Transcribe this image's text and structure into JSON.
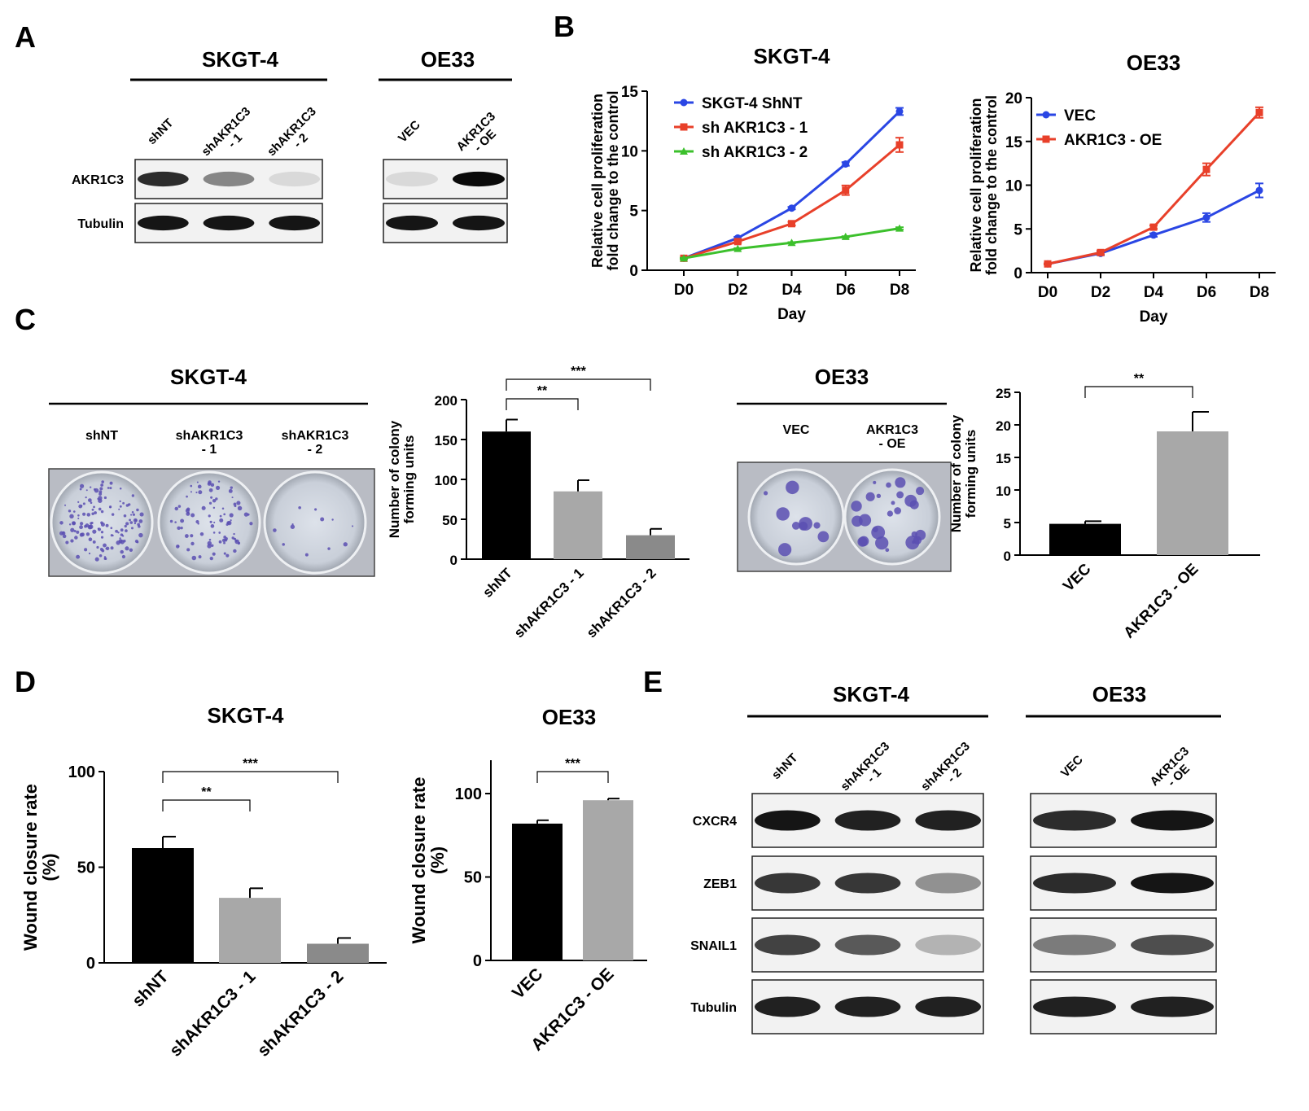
{
  "panels": {
    "A": {
      "letter": "A",
      "cells": [
        {
          "name": "SKGT-4",
          "lanes": [
            "shNT",
            "shAKR1C3\n- 1",
            "shAKR1C3\n- 2"
          ]
        },
        {
          "name": "OE33",
          "lanes": [
            "VEC",
            "AKR1C3\n- OE"
          ]
        }
      ],
      "proteins": [
        "AKR1C3",
        "Tubulin"
      ],
      "band_intensity": {
        "AKR1C3": [
          [
            0.85,
            0.45,
            0.08
          ],
          [
            0.08,
            1.0
          ]
        ],
        "Tubulin": [
          [
            0.95,
            0.95,
            0.95
          ],
          [
            0.95,
            0.95
          ]
        ]
      }
    },
    "B": {
      "letter": "B"
    },
    "C": {
      "letter": "C",
      "skgt": {
        "title": "SKGT-4",
        "labels": [
          "shNT",
          "shAKR1C3\n- 1",
          "shAKR1C3\n- 2"
        ]
      },
      "oe33": {
        "title": "OE33",
        "labels": [
          "VEC",
          "AKR1C3\n- OE"
        ]
      }
    },
    "D": {
      "letter": "D"
    },
    "E": {
      "letter": "E",
      "cells": [
        {
          "name": "SKGT-4",
          "lanes": [
            "shNT",
            "shAKR1C3\n- 1",
            "shAKR1C3\n- 2"
          ]
        },
        {
          "name": "OE33",
          "lanes": [
            "VEC",
            "AKR1C3\n- OE"
          ]
        }
      ],
      "proteins": [
        "CXCR4",
        "ZEB1",
        "SNAIL1",
        "Tubulin"
      ],
      "band_intensity": {
        "CXCR4": [
          [
            0.95,
            0.9,
            0.9
          ],
          [
            0.85,
            0.95
          ]
        ],
        "ZEB1": [
          [
            0.8,
            0.8,
            0.4
          ],
          [
            0.85,
            0.95
          ]
        ],
        "SNAIL1": [
          [
            0.75,
            0.65,
            0.25
          ],
          [
            0.5,
            0.7
          ]
        ],
        "Tubulin": [
          [
            0.9,
            0.9,
            0.9
          ],
          [
            0.9,
            0.9
          ]
        ]
      }
    }
  },
  "colors": {
    "blue": "#2a46e4",
    "red": "#e8402a",
    "green": "#3cc02c",
    "black": "#000000",
    "light_gray": "#a8a8a8",
    "mid_gray": "#8a8a8a"
  },
  "chart_data": [
    {
      "id": "B-SKGT-4",
      "type": "line",
      "title": "SKGT-4",
      "xlabel": "Day",
      "ylabel": "Relative cell proliferation\nfold change to the control",
      "categories": [
        "D0",
        "D2",
        "D4",
        "D6",
        "D8"
      ],
      "ylim": [
        0,
        15
      ],
      "yticks": [
        0,
        5,
        10,
        15
      ],
      "legend": "top-left",
      "series": [
        {
          "name": "SKGT-4 ShNT",
          "color": "#2a46e4",
          "marker": "circle",
          "values": [
            1,
            2.7,
            5.2,
            8.9,
            13.3
          ],
          "errors": [
            0.05,
            0.1,
            0.1,
            0.15,
            0.3
          ]
        },
        {
          "name": "sh AKR1C3 - 1",
          "color": "#e8402a",
          "marker": "square",
          "values": [
            1,
            2.4,
            3.9,
            6.7,
            10.5
          ],
          "errors": [
            0.05,
            0.1,
            0.15,
            0.4,
            0.6
          ]
        },
        {
          "name": "sh AKR1C3 - 2",
          "color": "#3cc02c",
          "marker": "triangle",
          "values": [
            1,
            1.8,
            2.3,
            2.8,
            3.5
          ],
          "errors": [
            0.05,
            0.05,
            0.05,
            0.05,
            0.1
          ]
        }
      ]
    },
    {
      "id": "B-OE33",
      "type": "line",
      "title": "OE33",
      "xlabel": "Day",
      "ylabel": "Relative cell proliferation\nfold change to the control",
      "categories": [
        "D0",
        "D2",
        "D4",
        "D6",
        "D8"
      ],
      "ylim": [
        0,
        20
      ],
      "yticks": [
        0,
        5,
        10,
        15,
        20
      ],
      "legend": "top-left",
      "series": [
        {
          "name": "VEC",
          "color": "#2a46e4",
          "marker": "circle",
          "values": [
            1,
            2.2,
            4.3,
            6.3,
            9.4
          ],
          "errors": [
            0.05,
            0.2,
            0.2,
            0.5,
            0.8
          ]
        },
        {
          "name": "AKR1C3 - OE",
          "color": "#e8402a",
          "marker": "square",
          "values": [
            1,
            2.3,
            5.2,
            11.8,
            18.3
          ],
          "errors": [
            0.05,
            0.2,
            0.2,
            0.7,
            0.6
          ]
        }
      ]
    },
    {
      "id": "C-SKGT-4",
      "type": "bar",
      "ylabel": "Number of colony\nforming units",
      "categories": [
        "shNT",
        "shAKR1C3 - 1",
        "shAKR1C3 - 2"
      ],
      "values": [
        160,
        85,
        30
      ],
      "errors": [
        15,
        14,
        8
      ],
      "colors": [
        "#000000",
        "#a8a8a8",
        "#8a8a8a"
      ],
      "ylim": [
        0,
        200
      ],
      "yticks": [
        0,
        50,
        100,
        150,
        200
      ],
      "significance": [
        {
          "from": 0,
          "to": 1,
          "label": "**"
        },
        {
          "from": 0,
          "to": 2,
          "label": "***"
        }
      ]
    },
    {
      "id": "C-OE33",
      "type": "bar",
      "ylabel": "Number of colony\nforming units",
      "categories": [
        "VEC",
        "AKR1C3 - OE"
      ],
      "values": [
        4.8,
        19
      ],
      "errors": [
        0.4,
        3
      ],
      "colors": [
        "#000000",
        "#a8a8a8"
      ],
      "ylim": [
        0,
        25
      ],
      "yticks": [
        0,
        5,
        10,
        15,
        20,
        25
      ],
      "significance": [
        {
          "from": 0,
          "to": 1,
          "label": "**"
        }
      ]
    },
    {
      "id": "D-SKGT-4",
      "type": "bar",
      "title": "SKGT-4",
      "ylabel": "Wound closure  rate\n(%)",
      "categories": [
        "shNT",
        "shAKR1C3 - 1",
        "shAKR1C3 - 2"
      ],
      "values": [
        60,
        34,
        10
      ],
      "errors": [
        6,
        5,
        3
      ],
      "colors": [
        "#000000",
        "#a8a8a8",
        "#8a8a8a"
      ],
      "ylim": [
        0,
        100
      ],
      "yticks": [
        0,
        50,
        100
      ],
      "significance": [
        {
          "from": 0,
          "to": 1,
          "label": "**"
        },
        {
          "from": 0,
          "to": 2,
          "label": "***"
        }
      ]
    },
    {
      "id": "D-OE33",
      "type": "bar",
      "title": "OE33",
      "ylabel": "Wound closure rate\n(%)",
      "categories": [
        "VEC",
        "AKR1C3 - OE"
      ],
      "values": [
        82,
        96
      ],
      "errors": [
        2,
        1
      ],
      "colors": [
        "#000000",
        "#a8a8a8"
      ],
      "ylim": [
        0,
        120
      ],
      "yticks": [
        0,
        50,
        100
      ],
      "significance": [
        {
          "from": 0,
          "to": 1,
          "label": "***"
        }
      ]
    }
  ]
}
